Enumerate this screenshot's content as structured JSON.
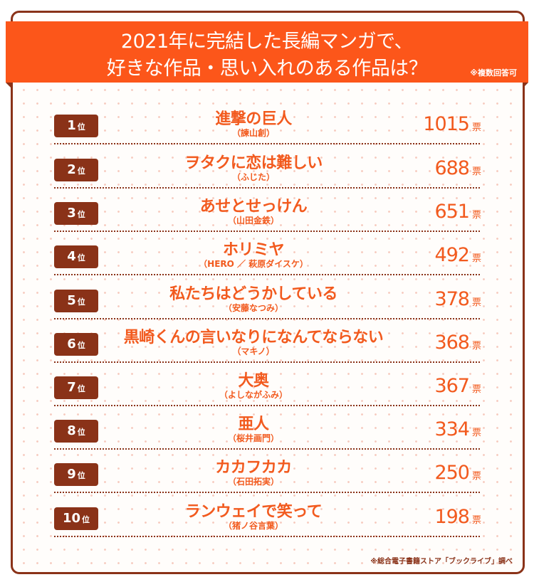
{
  "header": {
    "title_line1": "2021年に完結した長編マンガで、",
    "title_line2": "好きな作品・思い入れのある作品は？",
    "note": "※複数回答可"
  },
  "rank_suffix": "位",
  "vote_unit": "票",
  "rankings": [
    {
      "rank": "1",
      "title": "進撃の巨人",
      "author": "（諫山創）",
      "votes": "1015"
    },
    {
      "rank": "2",
      "title": "ヲタクに恋は難しい",
      "author": "（ふじた）",
      "votes": "688"
    },
    {
      "rank": "3",
      "title": "あせとせっけん",
      "author": "（山田金鉄）",
      "votes": "651"
    },
    {
      "rank": "4",
      "title": "ホリミヤ",
      "author": "（HERO ／ 萩原ダイスケ）",
      "votes": "492"
    },
    {
      "rank": "5",
      "title": "私たちはどうかしている",
      "author": "（安藤なつみ）",
      "votes": "378"
    },
    {
      "rank": "6",
      "title": "黒崎くんの言いなりになんてならない",
      "author": "（マキノ）",
      "votes": "368"
    },
    {
      "rank": "7",
      "title": "大奥",
      "author": "（よしながふみ）",
      "votes": "367"
    },
    {
      "rank": "8",
      "title": "亜人",
      "author": "（桜井画門）",
      "votes": "334"
    },
    {
      "rank": "9",
      "title": "カカフカカ",
      "author": "（石田拓実）",
      "votes": "250"
    },
    {
      "rank": "10",
      "title": "ランウェイで笑って",
      "author": "（猪ノ谷言葉）",
      "votes": "198"
    }
  ],
  "footer": {
    "source": "※総合電子書籍ストア「ブックライブ」調べ"
  },
  "colors": {
    "banner": "#fc561a",
    "accent_text": "#f25a1e",
    "badge": "#8a3218",
    "frame": "#8a3218"
  }
}
